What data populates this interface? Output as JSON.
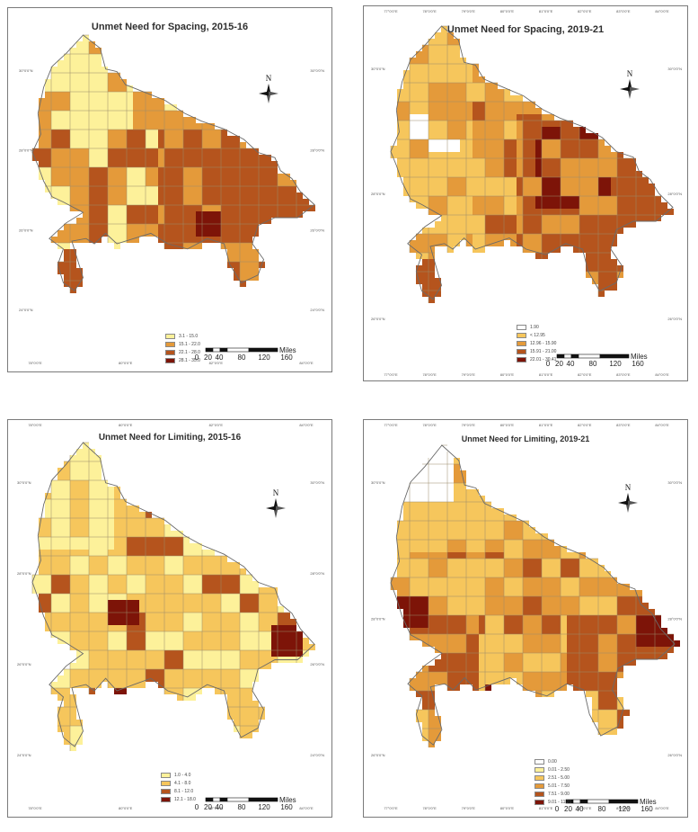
{
  "colors": {
    "c0": "#ffffff",
    "c1": "#fdf19a",
    "c2": "#f6c65c",
    "c3": "#e49a3a",
    "c4": "#b5541d",
    "c5": "#7d1408",
    "border": "#8a8a8a"
  },
  "north_label": "N",
  "scale": {
    "ticks": [
      "0",
      "20",
      "40",
      "80",
      "120",
      "160"
    ],
    "unit": "Miles"
  },
  "panels": [
    {
      "title": "Unmet Need for Spacing, 2015-16",
      "top_ticks": [],
      "bottom_ticks": [
        "78°0'0\"E",
        "80°0'0\"E",
        "82°0'0\"E",
        "84°0'0\"E"
      ],
      "left_ticks": [
        "30°0'0\"N",
        "28°0'0\"N",
        "26°0'0\"N",
        "24°0'0\"N"
      ],
      "right_ticks": [
        "30°0'0\"N",
        "28°0'0\"N",
        "26°0'0\"N",
        "24°0'0\"N"
      ],
      "legend": [
        {
          "label": "3.1 - 15.0",
          "color": "c1"
        },
        {
          "label": "15.1 - 22.0",
          "color": "c3"
        },
        {
          "label": "22.1 - 28.0",
          "color": "c4"
        },
        {
          "label": "28.1 - 35.0",
          "color": "c5"
        }
      ]
    },
    {
      "title": "Unmet Need for Spacing, 2019-21",
      "top_ticks": [
        "77°0'0\"E",
        "78°0'0\"E",
        "79°0'0\"E",
        "80°0'0\"E",
        "81°0'0\"E",
        "82°0'0\"E",
        "83°0'0\"E",
        "84°0'0\"E"
      ],
      "bottom_ticks": [
        "77°0'0\"E",
        "78°0'0\"E",
        "79°0'0\"E",
        "80°0'0\"E",
        "81°0'0\"E",
        "82°0'0\"E",
        "83°0'0\"E",
        "84°0'0\"E"
      ],
      "left_ticks": [
        "30°0'0\"N",
        "28°0'0\"N",
        "26°0'0\"N"
      ],
      "right_ticks": [
        "30°0'0\"N",
        "28°0'0\"N",
        "26°0'0\"N"
      ],
      "legend": [
        {
          "label": "1.90",
          "color": "c0"
        },
        {
          "label": "< 12.95",
          "color": "c2"
        },
        {
          "label": "12.96 - 15.90",
          "color": "c3"
        },
        {
          "label": "15.91 - 21.00",
          "color": "c4"
        },
        {
          "label": "22.01 - 30.41",
          "color": "c5"
        }
      ]
    },
    {
      "title": "Unmet Need for Limiting, 2015-16",
      "top_ticks": [
        "78°0'0\"E",
        "80°0'0\"E",
        "82°0'0\"E",
        "84°0'0\"E"
      ],
      "bottom_ticks": [
        "78°0'0\"E",
        "80°0'0\"E",
        "82°0'0\"E",
        "84°0'0\"E"
      ],
      "left_ticks": [
        "30°0'0\"N",
        "28°0'0\"N",
        "26°0'0\"N",
        "24°0'0\"N"
      ],
      "right_ticks": [
        "30°0'0\"N",
        "28°0'0\"N",
        "26°0'0\"N",
        "24°0'0\"N"
      ],
      "legend": [
        {
          "label": "1.0 - 4.0",
          "color": "c1"
        },
        {
          "label": "4.1 - 8.0",
          "color": "c2"
        },
        {
          "label": "8.1 - 12.0",
          "color": "c4"
        },
        {
          "label": "12.1 - 18.0",
          "color": "c5"
        }
      ]
    },
    {
      "title": "Unmet Need for Limiting, 2019-21",
      "top_ticks": [
        "77°0'0\"E",
        "78°0'0\"E",
        "79°0'0\"E",
        "80°0'0\"E",
        "81°0'0\"E",
        "82°0'0\"E",
        "83°0'0\"E",
        "84°0'0\"E"
      ],
      "bottom_ticks": [
        "77°0'0\"E",
        "78°0'0\"E",
        "79°0'0\"E",
        "80°0'0\"E",
        "81°0'0\"E",
        "82°0'0\"E",
        "83°0'0\"E",
        "84°0'0\"E"
      ],
      "left_ticks": [
        "30°0'0\"N",
        "28°0'0\"N",
        "26°0'0\"N"
      ],
      "right_ticks": [
        "30°0'0\"N",
        "28°0'0\"N",
        "26°0'0\"N"
      ],
      "legend": [
        {
          "label": "0.00",
          "color": "c0"
        },
        {
          "label": "0.01 - 2.50",
          "color": "c1"
        },
        {
          "label": "2.51 - 5.00",
          "color": "c2"
        },
        {
          "label": "5.01 - 7.50",
          "color": "c3"
        },
        {
          "label": "7.51 - 9.00",
          "color": "c4"
        },
        {
          "label": "9.01 - 11.21",
          "color": "c5"
        }
      ]
    }
  ]
}
